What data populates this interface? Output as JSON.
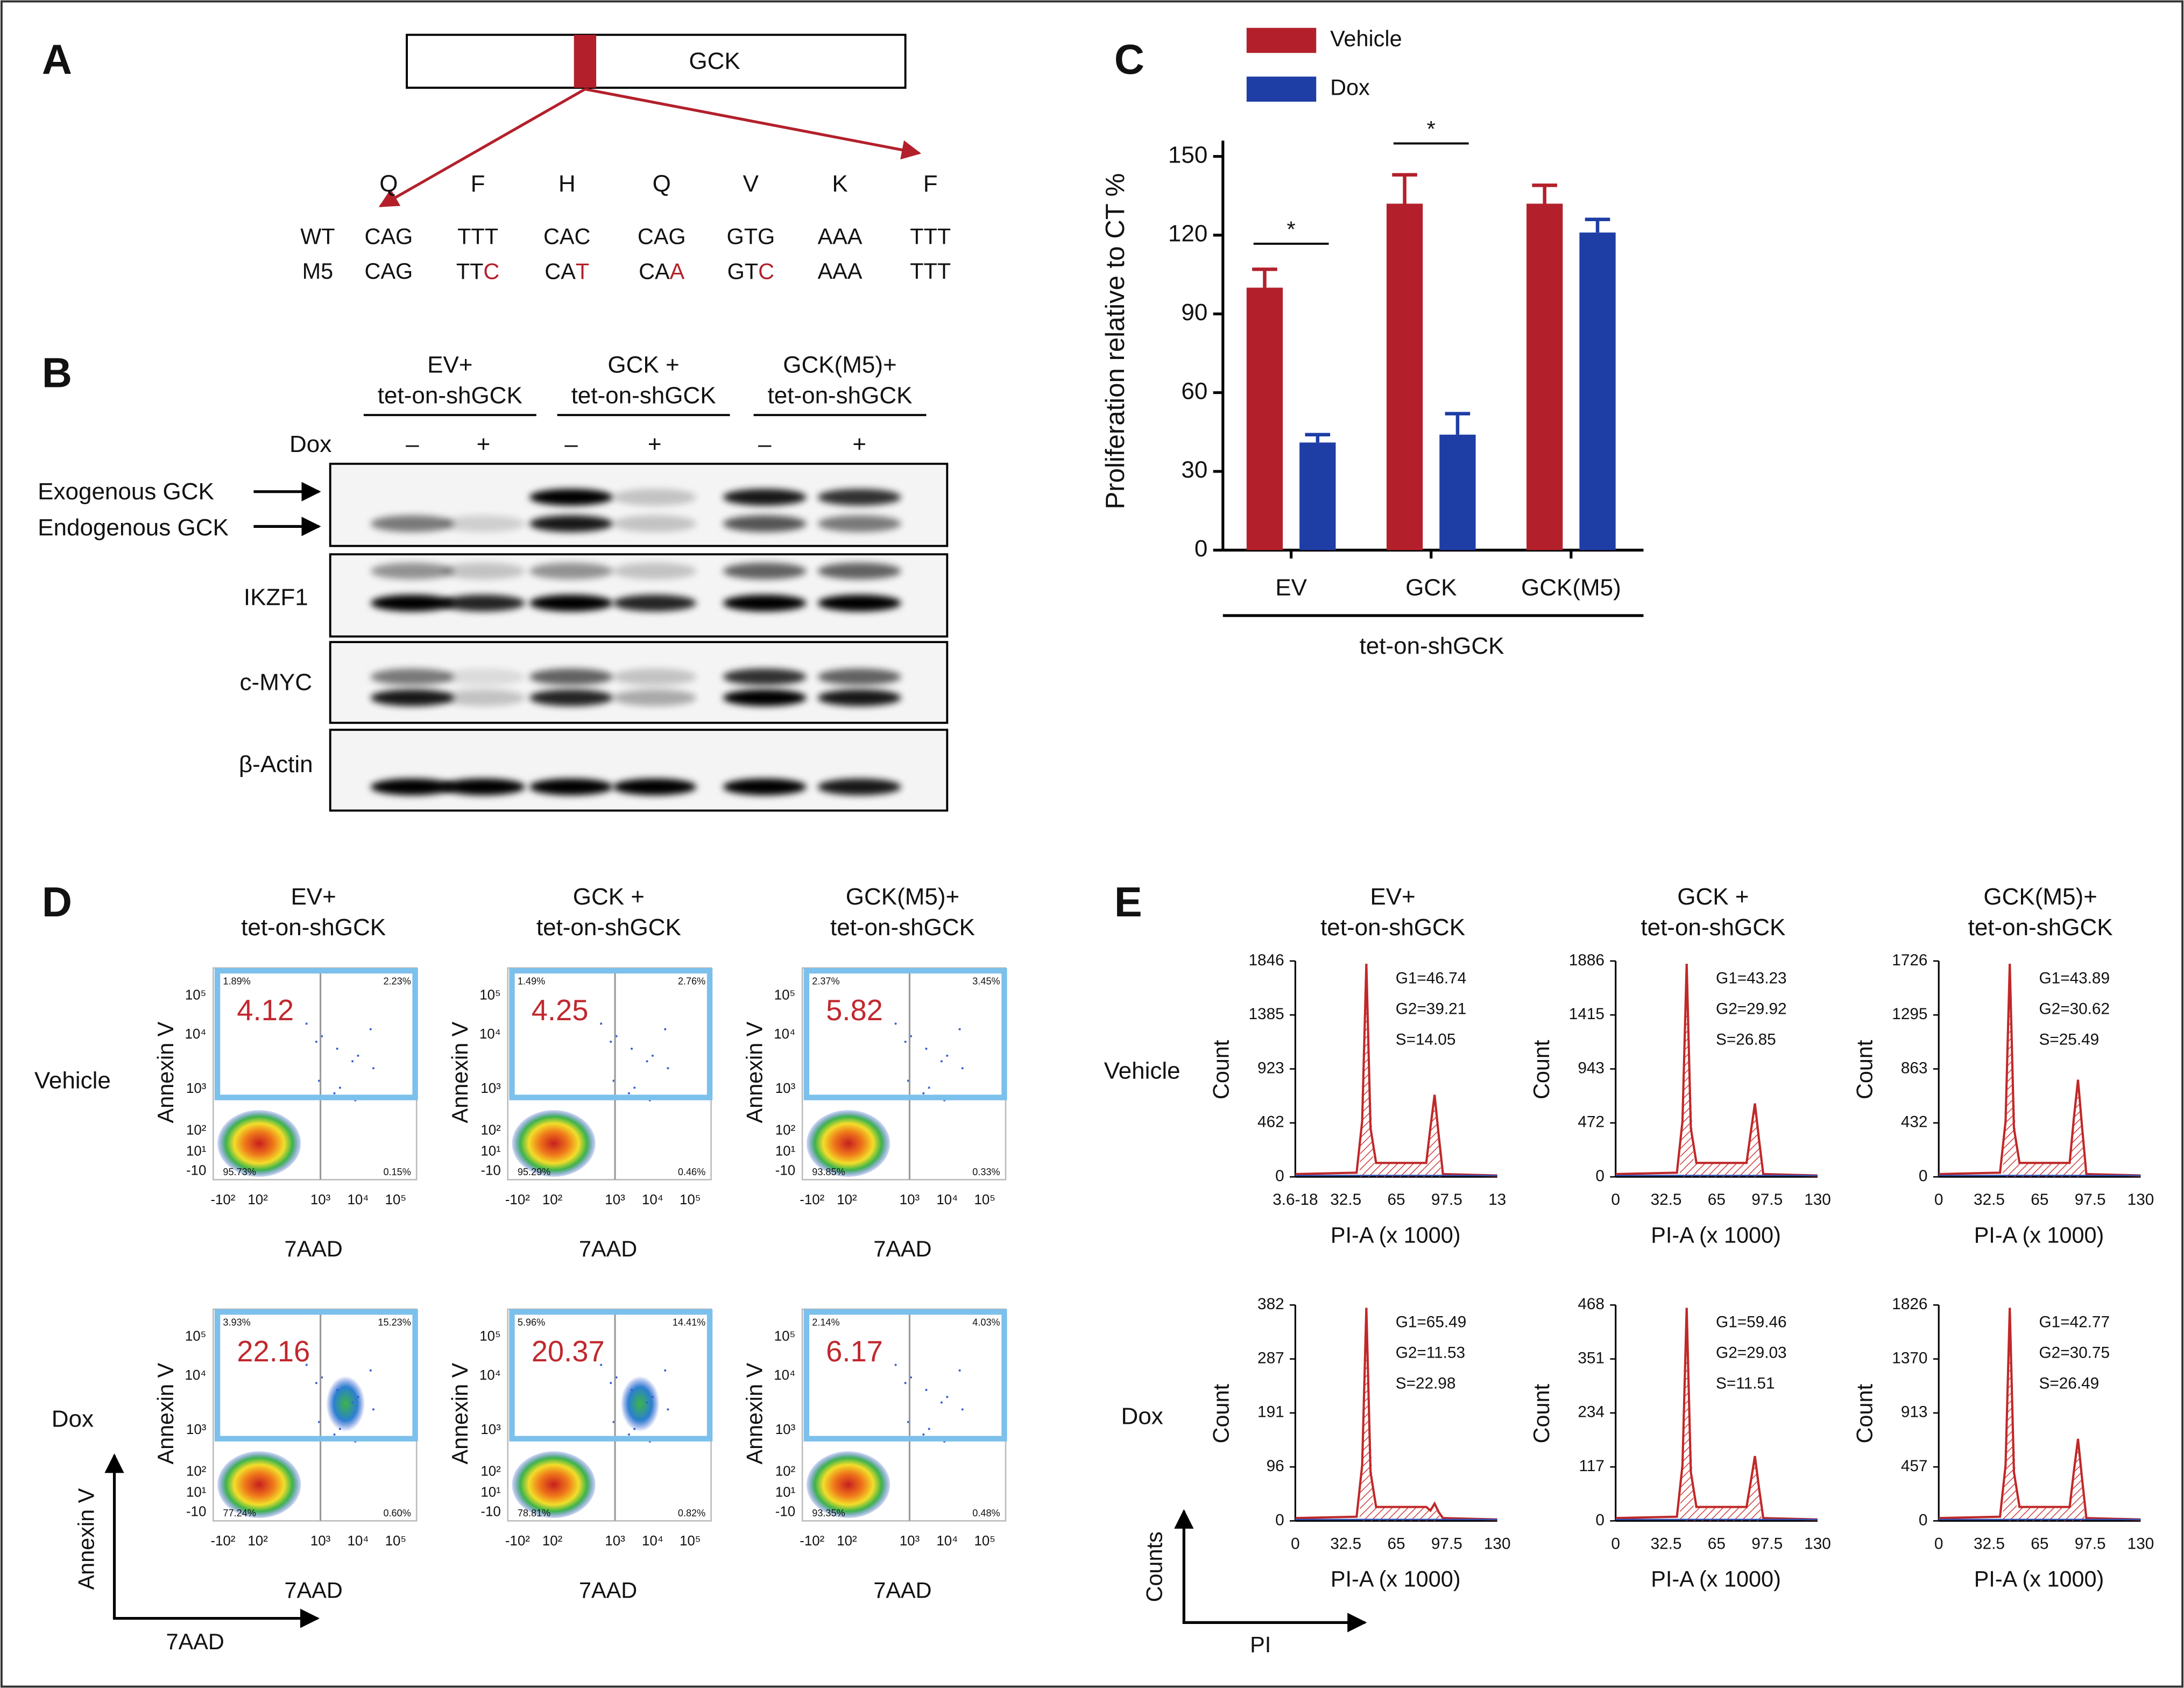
{
  "panel_a": {
    "label": "A",
    "gene": "GCK",
    "amino_acids": [
      "Q",
      "F",
      "H",
      "Q",
      "V",
      "K",
      "F"
    ],
    "rows": [
      {
        "name": "WT",
        "codons": [
          "CAG",
          "TTT",
          "CAC",
          "CAG",
          "GTG",
          "AAA",
          "TTT"
        ]
      },
      {
        "name": "M5",
        "codons": [
          "CAG",
          {
            "kept": "TT",
            "changed": "C"
          },
          {
            "kept": "CA",
            "changed": "T"
          },
          {
            "kept": "CA",
            "changed": "A"
          },
          {
            "kept": "GT",
            "changed": "C"
          },
          "AAA",
          "TTT"
        ]
      }
    ]
  },
  "panel_b": {
    "label": "B",
    "groups": [
      [
        "EV+",
        "tet-on-shGCK"
      ],
      [
        "GCK +",
        "tet-on-shGCK"
      ],
      [
        "GCK(M5)+",
        "tet-on-shGCK"
      ]
    ],
    "treatment": "Dox",
    "lanes": [
      "–",
      "+",
      "–",
      "+",
      "–",
      "+"
    ],
    "blots": [
      {
        "labels": [
          "Exogenous GCK",
          "Endogenous GCK"
        ]
      },
      {
        "labels": [
          "IKZF1"
        ]
      },
      {
        "labels": [
          "c-MYC"
        ]
      },
      {
        "labels": [
          "β-Actin"
        ]
      }
    ]
  },
  "chart_data": {
    "type": "bar",
    "label": "C",
    "ylabel": "Proliferation relative to CT %",
    "categories": [
      "EV",
      "GCK",
      "GCK(M5)"
    ],
    "group_label": "tet-on-shGCK",
    "series": [
      {
        "name": "Vehicle",
        "color": "#b3202b",
        "values": [
          100,
          132,
          132
        ],
        "errors": [
          7,
          11,
          7
        ]
      },
      {
        "name": "Dox",
        "color": "#1e3ea5",
        "values": [
          41,
          44,
          121
        ],
        "errors": [
          3,
          8,
          5
        ]
      }
    ],
    "ylim": [
      0,
      156
    ],
    "yticks": [
      0,
      30,
      60,
      90,
      120,
      150
    ],
    "significance": [
      "*",
      "*"
    ],
    "legend": "top-left"
  },
  "panel_d": {
    "label": "D",
    "columns": [
      [
        "EV+",
        "tet-on-shGCK"
      ],
      [
        "GCK +",
        "tet-on-shGCK"
      ],
      [
        "GCK(M5)+",
        "tet-on-shGCK"
      ]
    ],
    "rows": [
      "Vehicle",
      "Dox"
    ],
    "ylabel": "Annexin V",
    "xlabel": "7AAD",
    "yticks": [
      "10⁵",
      "10⁴",
      "10³",
      "10²",
      "10¹",
      "-10"
    ],
    "xticks": [
      "-10²",
      "10²",
      "10³",
      "10⁴",
      "10⁵"
    ],
    "plots": [
      [
        {
          "apoptotic": 4.12,
          "quadrants": [
            "1.89%",
            "2.23%",
            "95.73%",
            "0.15%"
          ]
        },
        {
          "apoptotic": 4.25,
          "quadrants": [
            "1.49%",
            "2.76%",
            "95.29%",
            "0.46%"
          ]
        },
        {
          "apoptotic": 5.82,
          "quadrants": [
            "2.37%",
            "3.45%",
            "93.85%",
            "0.33%"
          ]
        }
      ],
      [
        {
          "apoptotic": 22.16,
          "quadrants": [
            "3.93%",
            "15.23%",
            "77.24%",
            "0.60%"
          ]
        },
        {
          "apoptotic": 20.37,
          "quadrants": [
            "5.96%",
            "14.41%",
            "78.81%",
            "0.82%"
          ]
        },
        {
          "apoptotic": 6.17,
          "quadrants": [
            "2.14%",
            "4.03%",
            "93.35%",
            "0.48%"
          ]
        }
      ]
    ],
    "legend_y": "Annexin V",
    "legend_x": "7AAD"
  },
  "panel_e": {
    "label": "E",
    "columns": [
      [
        "EV+",
        "tet-on-shGCK"
      ],
      [
        "GCK +",
        "tet-on-shGCK"
      ],
      [
        "GCK(M5)+",
        "tet-on-shGCK"
      ]
    ],
    "rows": [
      "Vehicle",
      "Dox"
    ],
    "ylabel": "Count",
    "xlabel": "PI-A (x 1000)",
    "plots": [
      [
        {
          "yticks": [
            1846,
            1385,
            923,
            462,
            0
          ],
          "xticks": [
            "3.6-18",
            32.5,
            65,
            97.5,
            13
          ],
          "stats": [
            "G1=46.74",
            "G2=39.21",
            "S=14.05"
          ]
        },
        {
          "yticks": [
            1886,
            1415,
            943,
            472,
            0
          ],
          "xticks": [
            0,
            32.5,
            65,
            97.5,
            130
          ],
          "stats": [
            "G1=43.23",
            "G2=29.92",
            "S=26.85"
          ]
        },
        {
          "yticks": [
            1726,
            1295,
            863,
            432,
            0
          ],
          "xticks": [
            0,
            32.5,
            65,
            97.5,
            130
          ],
          "stats": [
            "G1=43.89",
            "G2=30.62",
            "S=25.49"
          ]
        }
      ],
      [
        {
          "yticks": [
            382,
            287,
            191,
            96,
            0
          ],
          "xticks": [
            0,
            32.5,
            65,
            97.5,
            130
          ],
          "stats": [
            "G1=65.49",
            "G2=11.53",
            "S=22.98"
          ]
        },
        {
          "yticks": [
            468,
            351,
            234,
            117,
            0
          ],
          "xticks": [
            0,
            32.5,
            65,
            97.5,
            130
          ],
          "stats": [
            "G1=59.46",
            "G2=29.03",
            "S=11.51"
          ]
        },
        {
          "yticks": [
            1826,
            1370,
            913,
            457,
            0
          ],
          "xticks": [
            0,
            32.5,
            65,
            97.5,
            130
          ],
          "stats": [
            "G1=42.77",
            "G2=30.75",
            "S=26.49"
          ]
        }
      ]
    ],
    "legend_y": "Counts",
    "legend_x": "PI"
  }
}
